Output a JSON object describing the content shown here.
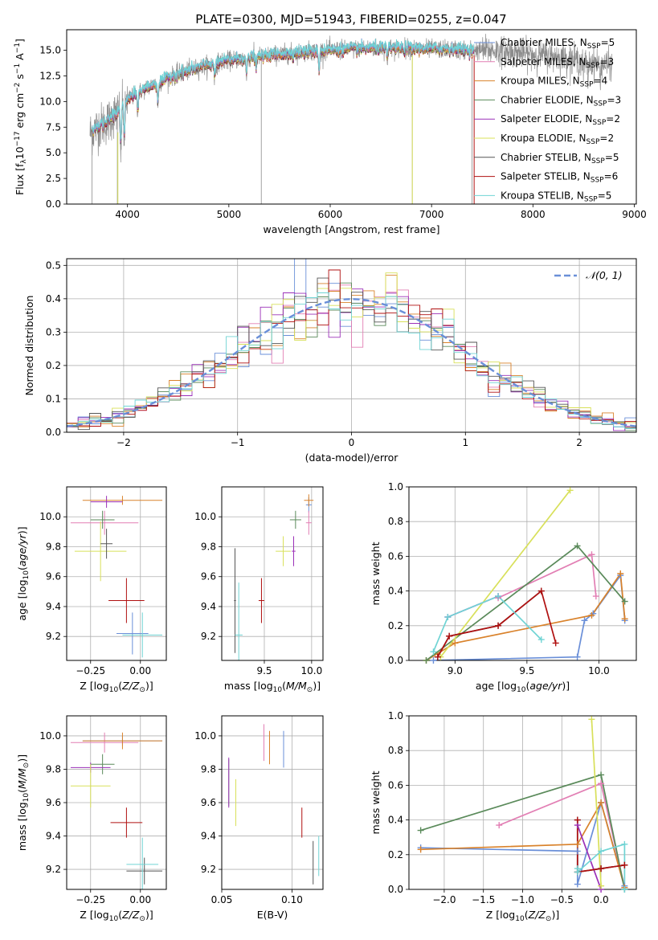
{
  "figure_title": "PLATE=0300, MJD=51943, FIBERID=0255, z=0.047",
  "colors": {
    "Chabrier MILES": "#6a8fd8",
    "Salpeter MILES": "#e27fb4",
    "Kroupa MILES": "#d9822b",
    "Chabrier ELODIE": "#5a8a5a",
    "Salpeter ELODIE": "#9b30b8",
    "Kroupa ELODIE": "#d8e05a",
    "Chabrier STELIB": "#555555",
    "Salpeter STELIB": "#b01010",
    "Kroupa STELIB": "#70d4d4",
    "data": "#8c8c8c",
    "normal": "#6a8fd8"
  },
  "chart_data": [
    {
      "id": "spectrum",
      "type": "line",
      "title": "PLATE=0300, MJD=51943, FIBERID=0255, z=0.047",
      "xlabel": "wavelength [Angstrom, rest frame]",
      "ylabel": "Flux [f$_\\lambda$10$^{-17}$ erg cm$^{-2}$ s$^{-1}$ A$^{-1}$]",
      "ylabel_parts": [
        "Flux [f",
        "λ",
        "10",
        "−17",
        " erg cm",
        "−2",
        " s",
        "−1",
        " A",
        "−1",
        "]"
      ],
      "xlim": [
        3400,
        9020
      ],
      "ylim": [
        0,
        17
      ],
      "xticks": [
        4000,
        5000,
        6000,
        7000,
        8000,
        9000
      ],
      "yticks": [
        0.0,
        2.5,
        5.0,
        7.5,
        10.0,
        12.5,
        15.0
      ],
      "legend_location": "upper right",
      "legend": [
        {
          "name": "Chabrier MILES",
          "nssp": "5"
        },
        {
          "name": "Salpeter MILES",
          "nssp": "3"
        },
        {
          "name": "Kroupa MILES",
          "nssp": "4"
        },
        {
          "name": "Chabrier ELODIE",
          "nssp": "3"
        },
        {
          "name": "Salpeter ELODIE",
          "nssp": "2"
        },
        {
          "name": "Kroupa ELODIE",
          "nssp": "2"
        },
        {
          "name": "Chabrier STELIB",
          "nssp": "5"
        },
        {
          "name": "Salpeter STELIB",
          "nssp": "6"
        },
        {
          "name": "Kroupa STELIB",
          "nssp": "5"
        }
      ],
      "continuum": {
        "x": [
          3650,
          3700,
          3800,
          3900,
          4000,
          4100,
          4200,
          4300,
          4400,
          4500,
          4600,
          4700,
          4800,
          4900,
          5000,
          5200,
          5400,
          5600,
          5800,
          6000,
          6200,
          6400,
          6600,
          6800,
          7000,
          7200,
          7400,
          7600,
          7800,
          8000,
          8200,
          8400,
          8600,
          8700
        ],
        "y": [
          7.0,
          7.5,
          8.0,
          9.0,
          10.2,
          10.8,
          11.4,
          11.8,
          12.3,
          12.7,
          13.0,
          13.3,
          13.6,
          13.8,
          14.0,
          14.3,
          14.5,
          14.7,
          14.9,
          15.0,
          15.1,
          15.2,
          15.2,
          15.2,
          15.1,
          15.1,
          15.0,
          15.0,
          14.8,
          14.6,
          14.4,
          14.1,
          13.8,
          13.6
        ]
      },
      "absorption_features": [
        {
          "x": 3934,
          "depth": 4.5
        },
        {
          "x": 3969,
          "depth": 4.0
        },
        {
          "x": 4101,
          "depth": 1.8
        },
        {
          "x": 4300,
          "depth": 2.0
        },
        {
          "x": 4861,
          "depth": 1.6
        },
        {
          "x": 5175,
          "depth": 2.0
        },
        {
          "x": 5270,
          "depth": 1.2
        },
        {
          "x": 5890,
          "depth": 2.2
        },
        {
          "x": 6563,
          "depth": 1.2
        },
        {
          "x": 8498,
          "depth": 1.2
        },
        {
          "x": 8542,
          "depth": 1.5
        },
        {
          "x": 8662,
          "depth": 1.3
        }
      ],
      "data_spikes": [
        {
          "x": 3650,
          "y": 0.0
        },
        {
          "x": 3900,
          "y": 0.0
        },
        {
          "x": 5320,
          "y": 0.0
        },
        {
          "x": 6810,
          "y": 0.0
        },
        {
          "x": 7400,
          "y": 0.0
        }
      ],
      "data_extent": [
        3630,
        8780
      ],
      "model_extent": [
        3650,
        7420
      ]
    },
    {
      "id": "residuals",
      "type": "histogram",
      "xlabel": "(data-model)/error",
      "ylabel": "Normed distribution",
      "xlim": [
        -2.5,
        2.5
      ],
      "ylim": [
        0,
        0.52
      ],
      "xticks": [
        -2,
        -1,
        0,
        1,
        2
      ],
      "yticks": [
        0.0,
        0.1,
        0.2,
        0.3,
        0.4,
        0.5
      ],
      "bin_width": 0.1,
      "reference_curve": {
        "name": "𝒩(0, 1)",
        "mean": 0,
        "sigma": 1,
        "style": "dashed"
      },
      "legend_location": "upper right"
    },
    {
      "id": "age_vs_Z",
      "type": "scatter",
      "xlabel": "Z [log10(Z/Z⊙)]",
      "ylabel": "age  [log10(age/yr)]",
      "xlim": [
        -0.37,
        0.13
      ],
      "ylim": [
        9.04,
        10.2
      ],
      "xticks": [
        -0.25,
        0.0
      ],
      "yticks": [
        9.2,
        9.4,
        9.6,
        9.8,
        10.0
      ],
      "points": [
        {
          "series": "Chabrier MILES",
          "x": -0.04,
          "y": 9.22,
          "xerr": 0.08,
          "yerr": 0.14
        },
        {
          "series": "Salpeter MILES",
          "x": -0.18,
          "y": 9.96,
          "xerr": 0.17,
          "yerr": 0.08
        },
        {
          "series": "Kroupa MILES",
          "x": -0.09,
          "y": 10.11,
          "xerr": 0.2,
          "yerr": 0.03
        },
        {
          "series": "Chabrier ELODIE",
          "x": -0.19,
          "y": 9.98,
          "xerr": 0.06,
          "yerr": 0.06
        },
        {
          "series": "Salpeter ELODIE",
          "x": -0.17,
          "y": 10.1,
          "xerr": 0.08,
          "yerr": 0.04
        },
        {
          "series": "Kroupa ELODIE",
          "x": -0.2,
          "y": 9.77,
          "xerr": 0.13,
          "yerr": 0.2
        },
        {
          "series": "Chabrier STELIB",
          "x": -0.17,
          "y": 9.82,
          "xerr": 0.03,
          "yerr": 0.1
        },
        {
          "series": "Salpeter STELIB",
          "x": -0.07,
          "y": 9.44,
          "xerr": 0.09,
          "yerr": 0.15
        },
        {
          "series": "Kroupa STELIB",
          "x": 0.01,
          "y": 9.21,
          "xerr": 0.1,
          "yerr": 0.15
        }
      ]
    },
    {
      "id": "age_vs_mass",
      "type": "scatter",
      "xlabel": "mass [log10(M/M⊙)]",
      "ylabel": "",
      "xlim": [
        9.05,
        10.12
      ],
      "ylim": [
        9.04,
        10.2
      ],
      "xticks": [
        9.5,
        10.0
      ],
      "yticks": [
        9.2,
        9.4,
        9.6,
        9.8,
        10.0
      ],
      "points": [
        {
          "series": "Chabrier MILES",
          "x": 9.97,
          "y": 10.08,
          "xerr": 0.03,
          "yerr": 0.05
        },
        {
          "series": "Salpeter MILES",
          "x": 9.97,
          "y": 9.96,
          "xerr": 0.03,
          "yerr": 0.08
        },
        {
          "series": "Kroupa MILES",
          "x": 9.97,
          "y": 10.11,
          "xerr": 0.05,
          "yerr": 0.04
        },
        {
          "series": "Chabrier ELODIE",
          "x": 9.83,
          "y": 9.98,
          "xerr": 0.06,
          "yerr": 0.06
        },
        {
          "series": "Salpeter ELODIE",
          "x": 9.81,
          "y": 9.77,
          "xerr": 0.02,
          "yerr": 0.1
        },
        {
          "series": "Kroupa ELODIE",
          "x": 9.7,
          "y": 9.77,
          "xerr": 0.08,
          "yerr": 0.1
        },
        {
          "series": "Chabrier STELIB",
          "x": 9.19,
          "y": 9.44,
          "xerr": 0.01,
          "yerr": 0.35
        },
        {
          "series": "Salpeter STELIB",
          "x": 9.47,
          "y": 9.44,
          "xerr": 0.03,
          "yerr": 0.15
        },
        {
          "series": "Kroupa STELIB",
          "x": 9.23,
          "y": 9.21,
          "xerr": 0.04,
          "yerr": 0.35
        }
      ]
    },
    {
      "id": "weight_vs_age",
      "type": "line",
      "xlabel": "age  [log10(age/yr)]",
      "ylabel": "mass weight",
      "xlim": [
        8.68,
        10.26
      ],
      "ylim": [
        0,
        1
      ],
      "xticks": [
        9.0,
        9.5,
        10.0
      ],
      "yticks": [
        0.0,
        0.2,
        0.4,
        0.6,
        0.8,
        1.0
      ],
      "series": [
        {
          "name": "Chabrier MILES",
          "x": [
            8.85,
            9.85,
            9.9,
            9.96,
            10.15,
            10.18
          ],
          "y": [
            0.0,
            0.02,
            0.23,
            0.27,
            0.49,
            0.23
          ]
        },
        {
          "name": "Salpeter MILES",
          "x": [
            9.3,
            9.95,
            9.98
          ],
          "y": [
            0.36,
            0.61,
            0.37
          ]
        },
        {
          "name": "Kroupa MILES",
          "x": [
            8.8,
            9.0,
            9.95,
            10.15,
            10.18
          ],
          "y": [
            0.0,
            0.1,
            0.26,
            0.5,
            0.24
          ]
        },
        {
          "name": "Chabrier ELODIE",
          "x": [
            8.8,
            9.85,
            10.18
          ],
          "y": [
            0.0,
            0.66,
            0.34
          ]
        },
        {
          "name": "Salpeter ELODIE",
          "x": [
            8.95,
            9.3
          ],
          "y": [
            0.25,
            0.37
          ]
        },
        {
          "name": "Kroupa ELODIE",
          "x": [
            8.9,
            9.8
          ],
          "y": [
            0.02,
            0.98
          ]
        },
        {
          "name": "Chabrier STELIB",
          "x": [
            8.88,
            8.96,
            9.3,
            9.6
          ],
          "y": [
            0.02,
            0.14,
            0.2,
            0.4
          ]
        },
        {
          "name": "Salpeter STELIB",
          "x": [
            8.88,
            8.96,
            9.3,
            9.6,
            9.7
          ],
          "y": [
            0.02,
            0.14,
            0.2,
            0.4,
            0.1
          ]
        },
        {
          "name": "Kroupa STELIB",
          "x": [
            8.85,
            8.95,
            9.3,
            9.6
          ],
          "y": [
            0.05,
            0.25,
            0.37,
            0.12
          ]
        }
      ]
    },
    {
      "id": "mass_vs_Z",
      "type": "scatter",
      "xlabel": "Z [log10(Z/Z⊙)]",
      "ylabel": "mass [log10(M/M⊙)]",
      "xlim": [
        -0.37,
        0.13
      ],
      "ylim": [
        9.08,
        10.12
      ],
      "xticks": [
        -0.25,
        0.0
      ],
      "yticks": [
        9.2,
        9.4,
        9.6,
        9.8,
        10.0
      ],
      "points": [
        {
          "series": "Chabrier MILES",
          "x": -0.09,
          "y": 9.97,
          "xerr": 0.2,
          "yerr": 0.03
        },
        {
          "series": "Salpeter MILES",
          "x": -0.18,
          "y": 9.96,
          "xerr": 0.17,
          "yerr": 0.06
        },
        {
          "series": "Kroupa MILES",
          "x": -0.09,
          "y": 9.97,
          "xerr": 0.2,
          "yerr": 0.05
        },
        {
          "series": "Chabrier ELODIE",
          "x": -0.19,
          "y": 9.83,
          "xerr": 0.06,
          "yerr": 0.06
        },
        {
          "series": "Salpeter ELODIE",
          "x": -0.25,
          "y": 9.81,
          "xerr": 0.1,
          "yerr": 0.03
        },
        {
          "series": "Kroupa ELODIE",
          "x": -0.25,
          "y": 9.7,
          "xerr": 0.1,
          "yerr": 0.13
        },
        {
          "series": "Chabrier STELIB",
          "x": 0.02,
          "y": 9.19,
          "xerr": 0.09,
          "yerr": 0.08
        },
        {
          "series": "Salpeter STELIB",
          "x": -0.07,
          "y": 9.48,
          "xerr": 0.08,
          "yerr": 0.09
        },
        {
          "series": "Kroupa STELIB",
          "x": 0.01,
          "y": 9.23,
          "xerr": 0.08,
          "yerr": 0.16
        }
      ]
    },
    {
      "id": "mass_vs_EBV",
      "type": "scatter",
      "xlabel": "E(B-V)",
      "ylabel": "",
      "xlim": [
        0.05,
        0.122
      ],
      "ylim": [
        9.08,
        10.12
      ],
      "xticks": [
        0.05,
        0.1
      ],
      "yticks": [
        9.2,
        9.4,
        9.6,
        9.8,
        10.0
      ],
      "points": [
        {
          "series": "Chabrier MILES",
          "x": 0.094,
          "y": 9.92,
          "xerr": 0,
          "yerr": 0.11
        },
        {
          "series": "Salpeter MILES",
          "x": 0.08,
          "y": 9.96,
          "xerr": 0,
          "yerr": 0.11
        },
        {
          "series": "Kroupa MILES",
          "x": 0.084,
          "y": 9.93,
          "xerr": 0,
          "yerr": 0.1
        },
        {
          "series": "Chabrier ELODIE",
          "x": 0.055,
          "y": 9.72,
          "xerr": 0,
          "yerr": 0.14
        },
        {
          "series": "Salpeter ELODIE",
          "x": 0.055,
          "y": 9.72,
          "xerr": 0,
          "yerr": 0.15
        },
        {
          "series": "Kroupa ELODIE",
          "x": 0.06,
          "y": 9.6,
          "xerr": 0,
          "yerr": 0.14
        },
        {
          "series": "Chabrier STELIB",
          "x": 0.115,
          "y": 9.24,
          "xerr": 0,
          "yerr": 0.13
        },
        {
          "series": "Salpeter STELIB",
          "x": 0.107,
          "y": 9.48,
          "xerr": 0,
          "yerr": 0.09
        },
        {
          "series": "Kroupa STELIB",
          "x": 0.119,
          "y": 9.28,
          "xerr": 0,
          "yerr": 0.12
        }
      ]
    },
    {
      "id": "weight_vs_Z",
      "type": "line",
      "xlabel": "Z [log10(Z/Z⊙)]",
      "ylabel": "mass weight",
      "xlim": [
        -2.45,
        0.45
      ],
      "ylim": [
        0,
        1
      ],
      "xticks": [
        -2.0,
        -1.5,
        -1.0,
        -0.5,
        0.0
      ],
      "yticks": [
        0.0,
        0.2,
        0.4,
        0.6,
        0.8,
        1.0
      ],
      "series": [
        {
          "name": "Chabrier MILES",
          "x": [
            -2.3,
            -0.3,
            -0.3,
            0.0,
            0.3,
            0.3
          ],
          "y": [
            0.24,
            0.22,
            0.03,
            0.5,
            0.02,
            0.0
          ]
        },
        {
          "name": "Salpeter MILES",
          "x": [
            -1.3,
            0.0,
            0.3
          ],
          "y": [
            0.37,
            0.61,
            0.01
          ]
        },
        {
          "name": "Kroupa MILES",
          "x": [
            -2.3,
            -0.3,
            0.0,
            0.3
          ],
          "y": [
            0.23,
            0.26,
            0.5,
            0.01
          ]
        },
        {
          "name": "Chabrier ELODIE",
          "x": [
            -2.3,
            0.0,
            0.3
          ],
          "y": [
            0.34,
            0.66,
            0.0
          ]
        },
        {
          "name": "Salpeter ELODIE",
          "x": [
            -0.3,
            0.0
          ],
          "y": [
            0.37,
            0.0
          ]
        },
        {
          "name": "Kroupa ELODIE",
          "x": [
            -0.12,
            0.0
          ],
          "y": [
            0.98,
            0.02
          ]
        },
        {
          "name": "Chabrier STELIB",
          "x": [
            -0.3,
            -0.3,
            0.0,
            0.3
          ],
          "y": [
            0.4,
            0.1,
            0.12,
            0.14
          ]
        },
        {
          "name": "Salpeter STELIB",
          "x": [
            -0.3,
            -0.3,
            0.0,
            0.3
          ],
          "y": [
            0.4,
            0.1,
            0.12,
            0.14
          ]
        },
        {
          "name": "Kroupa STELIB",
          "x": [
            -0.3,
            -0.3,
            0.0,
            0.3,
            0.3
          ],
          "y": [
            0.12,
            0.1,
            0.22,
            0.26,
            0.0
          ]
        }
      ]
    }
  ]
}
